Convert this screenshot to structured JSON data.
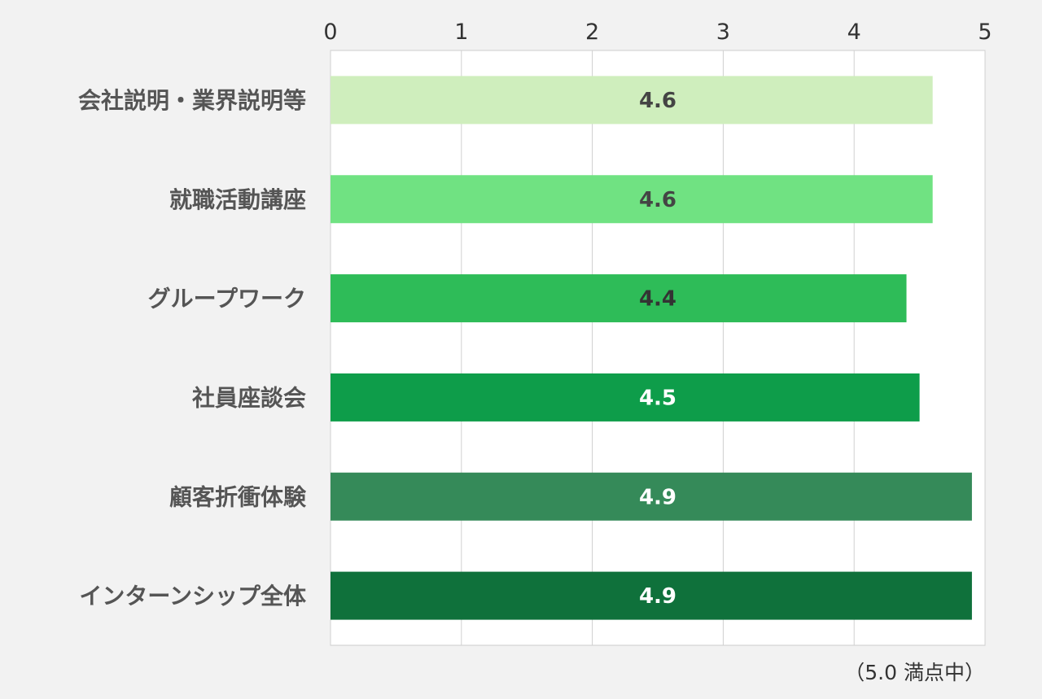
{
  "chart_data": {
    "type": "bar",
    "orientation": "horizontal",
    "categories": [
      "会社説明・業界説明等",
      "就職活動講座",
      "グループワーク",
      "社員座談会",
      "顧客折衝体験",
      "インターンシップ全体"
    ],
    "values": [
      4.6,
      4.6,
      4.4,
      4.5,
      4.9,
      4.9
    ],
    "value_labels": [
      "4.6",
      "4.6",
      "4.4",
      "4.5",
      "4.9",
      "4.9"
    ],
    "bar_colors": [
      "#cfeebd",
      "#70e282",
      "#2ebc58",
      "#0e9d4a",
      "#358a59",
      "#0f713b"
    ],
    "label_colors": [
      "#444444",
      "#444444",
      "#333333",
      "#ffffff",
      "#ffffff",
      "#ffffff"
    ],
    "xlim": [
      0,
      5
    ],
    "x_ticks": [
      "0",
      "1",
      "2",
      "3",
      "4",
      "5"
    ],
    "x_axis_position": "top",
    "grid": true,
    "note": "（5.0 満点中）",
    "title": "",
    "xlabel": "",
    "ylabel": ""
  }
}
